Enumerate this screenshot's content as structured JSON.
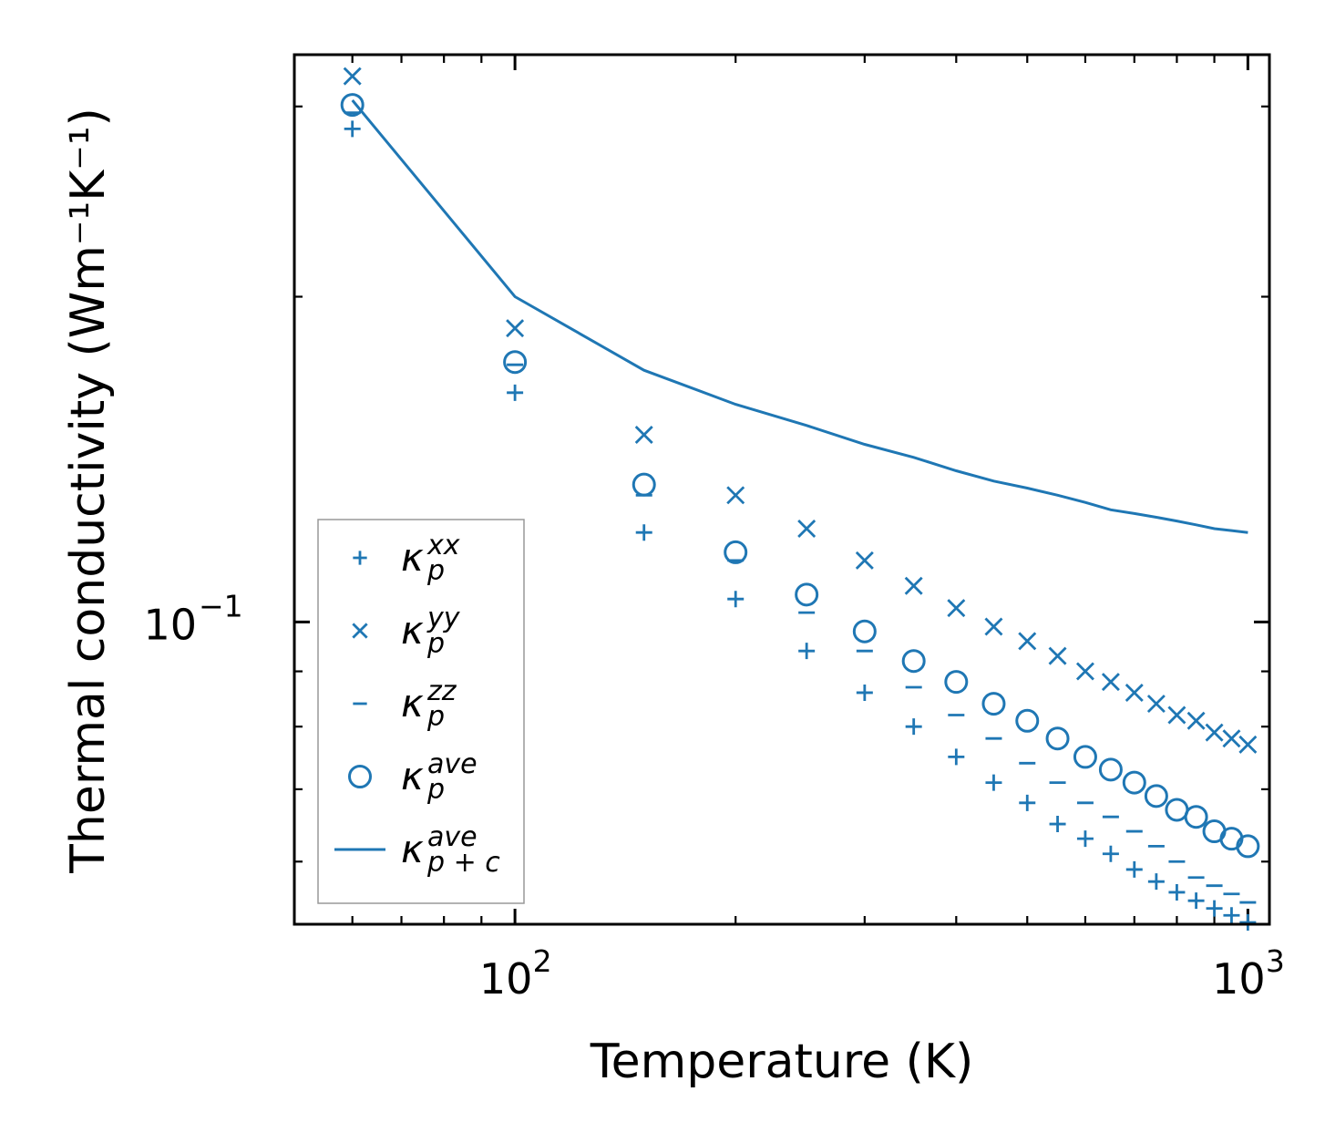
{
  "chart_data": {
    "type": "scatter",
    "title": "",
    "xlabel": "Temperature (K)",
    "ylabel": "Thermal conductivity (Wm⁻¹K⁻¹)",
    "xscale": "log",
    "yscale": "log",
    "xlim": [
      50,
      1070
    ],
    "ylim": [
      0.0525,
      0.335
    ],
    "x_ticks": [
      {
        "base": "10",
        "exp": "2",
        "value": 100
      },
      {
        "base": "10",
        "exp": "3",
        "value": 1000
      }
    ],
    "y_ticks": [
      {
        "base": "10",
        "exp": "−1",
        "value": 0.1
      }
    ],
    "color": "#1f77b4",
    "legend_position": "lower-left",
    "x": [
      60,
      100,
      150,
      200,
      250,
      300,
      350,
      400,
      450,
      500,
      550,
      600,
      650,
      700,
      750,
      800,
      850,
      900,
      950,
      1000
    ],
    "series": [
      {
        "name": "kappa_p_xx",
        "legend_base": "κ",
        "legend_sub": "p",
        "legend_sup": "xx",
        "marker": "plus",
        "values": [
          0.286,
          0.163,
          0.121,
          0.105,
          0.094,
          0.086,
          0.08,
          0.075,
          0.071,
          0.068,
          0.065,
          0.063,
          0.061,
          0.059,
          0.0575,
          0.0562,
          0.0552,
          0.0543,
          0.0535,
          0.0527
        ]
      },
      {
        "name": "kappa_p_yy",
        "legend_base": "κ",
        "legend_sub": "p",
        "legend_sup": "yy",
        "marker": "x",
        "values": [
          0.32,
          0.187,
          0.149,
          0.131,
          0.122,
          0.114,
          0.108,
          0.103,
          0.099,
          0.096,
          0.093,
          0.09,
          0.088,
          0.086,
          0.084,
          0.082,
          0.081,
          0.079,
          0.078,
          0.077
        ]
      },
      {
        "name": "kappa_p_zz",
        "legend_base": "κ",
        "legend_sub": "p",
        "legend_sup": "zz",
        "marker": "hline",
        "values": [
          0.296,
          0.173,
          0.131,
          0.114,
          0.102,
          0.094,
          0.087,
          0.082,
          0.078,
          0.074,
          0.071,
          0.068,
          0.066,
          0.064,
          0.062,
          0.06,
          0.058,
          0.057,
          0.056,
          0.055
        ]
      },
      {
        "name": "kappa_p_ave",
        "legend_base": "κ",
        "legend_sub": "p",
        "legend_sup": "ave",
        "marker": "circle",
        "values": [
          0.301,
          0.174,
          0.134,
          0.116,
          0.106,
          0.098,
          0.092,
          0.088,
          0.084,
          0.081,
          0.078,
          0.075,
          0.073,
          0.071,
          0.069,
          0.067,
          0.066,
          0.064,
          0.063,
          0.062
        ]
      },
      {
        "name": "kappa_pc_ave",
        "legend_base": "κ",
        "legend_sub": "p + c",
        "legend_sup": "ave",
        "marker": "line",
        "values": [
          0.304,
          0.2,
          0.171,
          0.159,
          0.152,
          0.146,
          0.142,
          0.138,
          0.135,
          0.133,
          0.131,
          0.129,
          0.127,
          0.126,
          0.125,
          0.124,
          0.123,
          0.122,
          0.1215,
          0.121
        ]
      }
    ]
  }
}
